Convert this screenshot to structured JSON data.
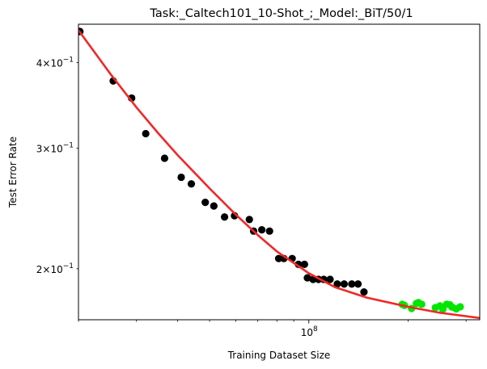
{
  "chart_data": {
    "type": "scatter",
    "title": "Task:_Caltech101_10-Shot_;_Model:_BiT/50/1",
    "xlabel": "Training Dataset Size",
    "ylabel": "Test Error Rate",
    "xscale": "log",
    "yscale": "log",
    "xlim": [
      20000000.0,
      330000000.0
    ],
    "ylim": [
      0.1685,
      0.455
    ],
    "x_ticks": [
      {
        "value": 100000000.0,
        "base": "10",
        "exp": "8"
      }
    ],
    "y_ticks": [
      {
        "value": 0.2,
        "mantissa": "2",
        "base": "10",
        "exp": "−1"
      },
      {
        "value": 0.3,
        "mantissa": "3",
        "base": "10",
        "exp": "−1"
      },
      {
        "value": 0.4,
        "mantissa": "4",
        "base": "10",
        "exp": "−1"
      }
    ],
    "grid": false,
    "legend": "none",
    "series": [
      {
        "color": "#000000",
        "points": [
          [
            20200000.0,
            0.444
          ],
          [
            25500000.0,
            0.376
          ],
          [
            29000000.0,
            0.355
          ],
          [
            32000000.0,
            0.315
          ],
          [
            36500000.0,
            0.29
          ],
          [
            41000000.0,
            0.272
          ],
          [
            44000000.0,
            0.266
          ],
          [
            48500000.0,
            0.25
          ],
          [
            51500000.0,
            0.247
          ],
          [
            55500000.0,
            0.238
          ],
          [
            59500000.0,
            0.239
          ],
          [
            66000000.0,
            0.236
          ],
          [
            68000000.0,
            0.227
          ],
          [
            72000000.0,
            0.228
          ],
          [
            76000000.0,
            0.227
          ],
          [
            81000000.0,
            0.207
          ],
          [
            84000000.0,
            0.207
          ],
          [
            89000000.0,
            0.207
          ],
          [
            93000000.0,
            0.203
          ],
          [
            97000000.0,
            0.203
          ],
          [
            99000000.0,
            0.194
          ],
          [
            103000000.0,
            0.193
          ],
          [
            107000000.0,
            0.193
          ],
          [
            111000000.0,
            0.193
          ],
          [
            116000000.0,
            0.193
          ],
          [
            122000000.0,
            0.19
          ],
          [
            128000000.0,
            0.19
          ],
          [
            135000000.0,
            0.19
          ],
          [
            141000000.0,
            0.19
          ],
          [
            147000000.0,
            0.185
          ]
        ]
      },
      {
        "color": "#00e600",
        "points": [
          [
            192000000.0,
            0.1775
          ],
          [
            195000000.0,
            0.1768
          ],
          [
            205000000.0,
            0.175
          ],
          [
            212000000.0,
            0.178
          ],
          [
            215000000.0,
            0.1785
          ],
          [
            220000000.0,
            0.1775
          ],
          [
            242000000.0,
            0.1755
          ],
          [
            250000000.0,
            0.1765
          ],
          [
            255000000.0,
            0.1745
          ],
          [
            262000000.0,
            0.1775
          ],
          [
            268000000.0,
            0.1772
          ],
          [
            272000000.0,
            0.1758
          ],
          [
            280000000.0,
            0.1748
          ],
          [
            288000000.0,
            0.176
          ]
        ]
      }
    ],
    "fit_line": {
      "color": "#f02828",
      "points": [
        [
          20000000.0,
          0.446
        ],
        [
          25000000.0,
          0.385
        ],
        [
          30000000.0,
          0.344
        ],
        [
          35000000.0,
          0.315
        ],
        [
          40000000.0,
          0.293
        ],
        [
          50000000.0,
          0.262
        ],
        [
          60000000.0,
          0.24
        ],
        [
          70000000.0,
          0.224
        ],
        [
          80000000.0,
          0.212
        ],
        [
          100000000.0,
          0.197
        ],
        [
          120000000.0,
          0.188
        ],
        [
          150000000.0,
          0.1815
        ],
        [
          200000000.0,
          0.176
        ],
        [
          250000000.0,
          0.1725
        ],
        [
          330000000.0,
          0.1695
        ]
      ]
    }
  }
}
